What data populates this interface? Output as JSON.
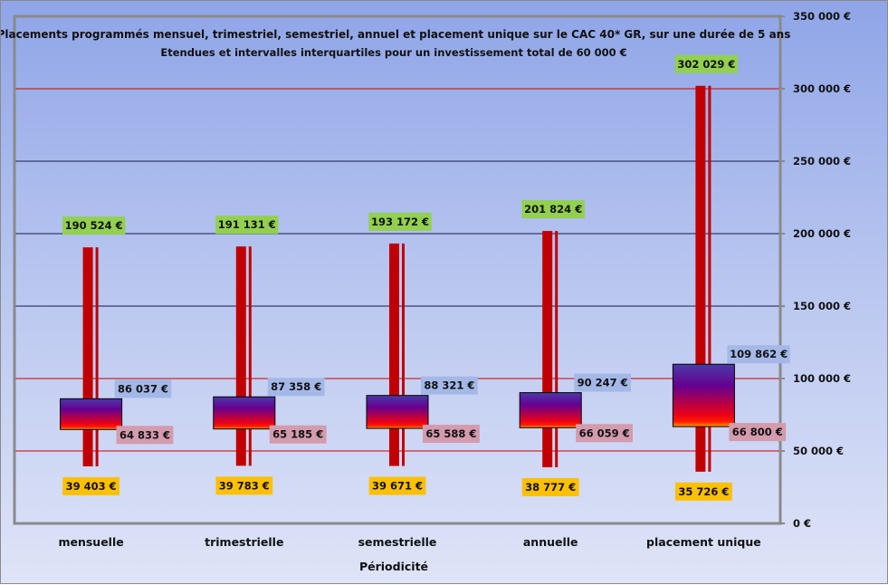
{
  "chart_data": {
    "type": "boxplot",
    "title": "Placements programmés  mensuel, trimestriel, semestriel, annuel et placement unique sur  le CAC 40* GR, sur une durée de 5 ans",
    "subtitle": "Etendues et intervalles interquartiles pour un investissement total de 60 000 €",
    "xlabel": "Périodicité",
    "ylabel": "",
    "ylim": [
      0,
      350000
    ],
    "yticks": [
      0,
      50000,
      100000,
      150000,
      200000,
      250000,
      300000,
      350000
    ],
    "ytick_labels": [
      "0 €",
      "50 000 €",
      "100 000 €",
      "150 000 €",
      "200 000 €",
      "250 000 €",
      "300 000 €",
      "350 000 €"
    ],
    "categories": [
      "mensuelle",
      "trimestrielle",
      "semestrielle",
      "annuelle",
      "placement unique"
    ],
    "series": [
      {
        "name": "max",
        "values": [
          190524,
          191131,
          193172,
          201824,
          302029
        ],
        "labels": [
          "190 524 €",
          "191 131 €",
          "193 172 €",
          "201 824 €",
          "302 029 €"
        ]
      },
      {
        "name": "q3",
        "values": [
          86037,
          87358,
          88321,
          90247,
          109862
        ],
        "labels": [
          "86 037 €",
          "87 358 €",
          "88 321 €",
          "90 247 €",
          "109 862 €"
        ]
      },
      {
        "name": "q1",
        "values": [
          64833,
          65185,
          65588,
          66059,
          66800
        ],
        "labels": [
          "64 833 €",
          "65 185 €",
          "65 588 €",
          "66 059 €",
          "66 800 €"
        ]
      },
      {
        "name": "min",
        "values": [
          39403,
          39783,
          39671,
          38777,
          35726
        ],
        "labels": [
          "39 403 €",
          "39 783 €",
          "39 671 €",
          "38 777 €",
          "35 726 €"
        ]
      }
    ],
    "colors": {
      "whisker": "#c00000",
      "max_label_bg": "#92d050",
      "min_label_bg": "#ffc000",
      "q3_label_bg": "#a4b8e8",
      "q1_label_bg": "#d39bad",
      "grid_red": "#d00000",
      "grid_dark": "#1a1a4a"
    },
    "gridline_colors": [
      "red",
      "dark",
      "dark",
      "dark",
      "red",
      "red"
    ]
  }
}
